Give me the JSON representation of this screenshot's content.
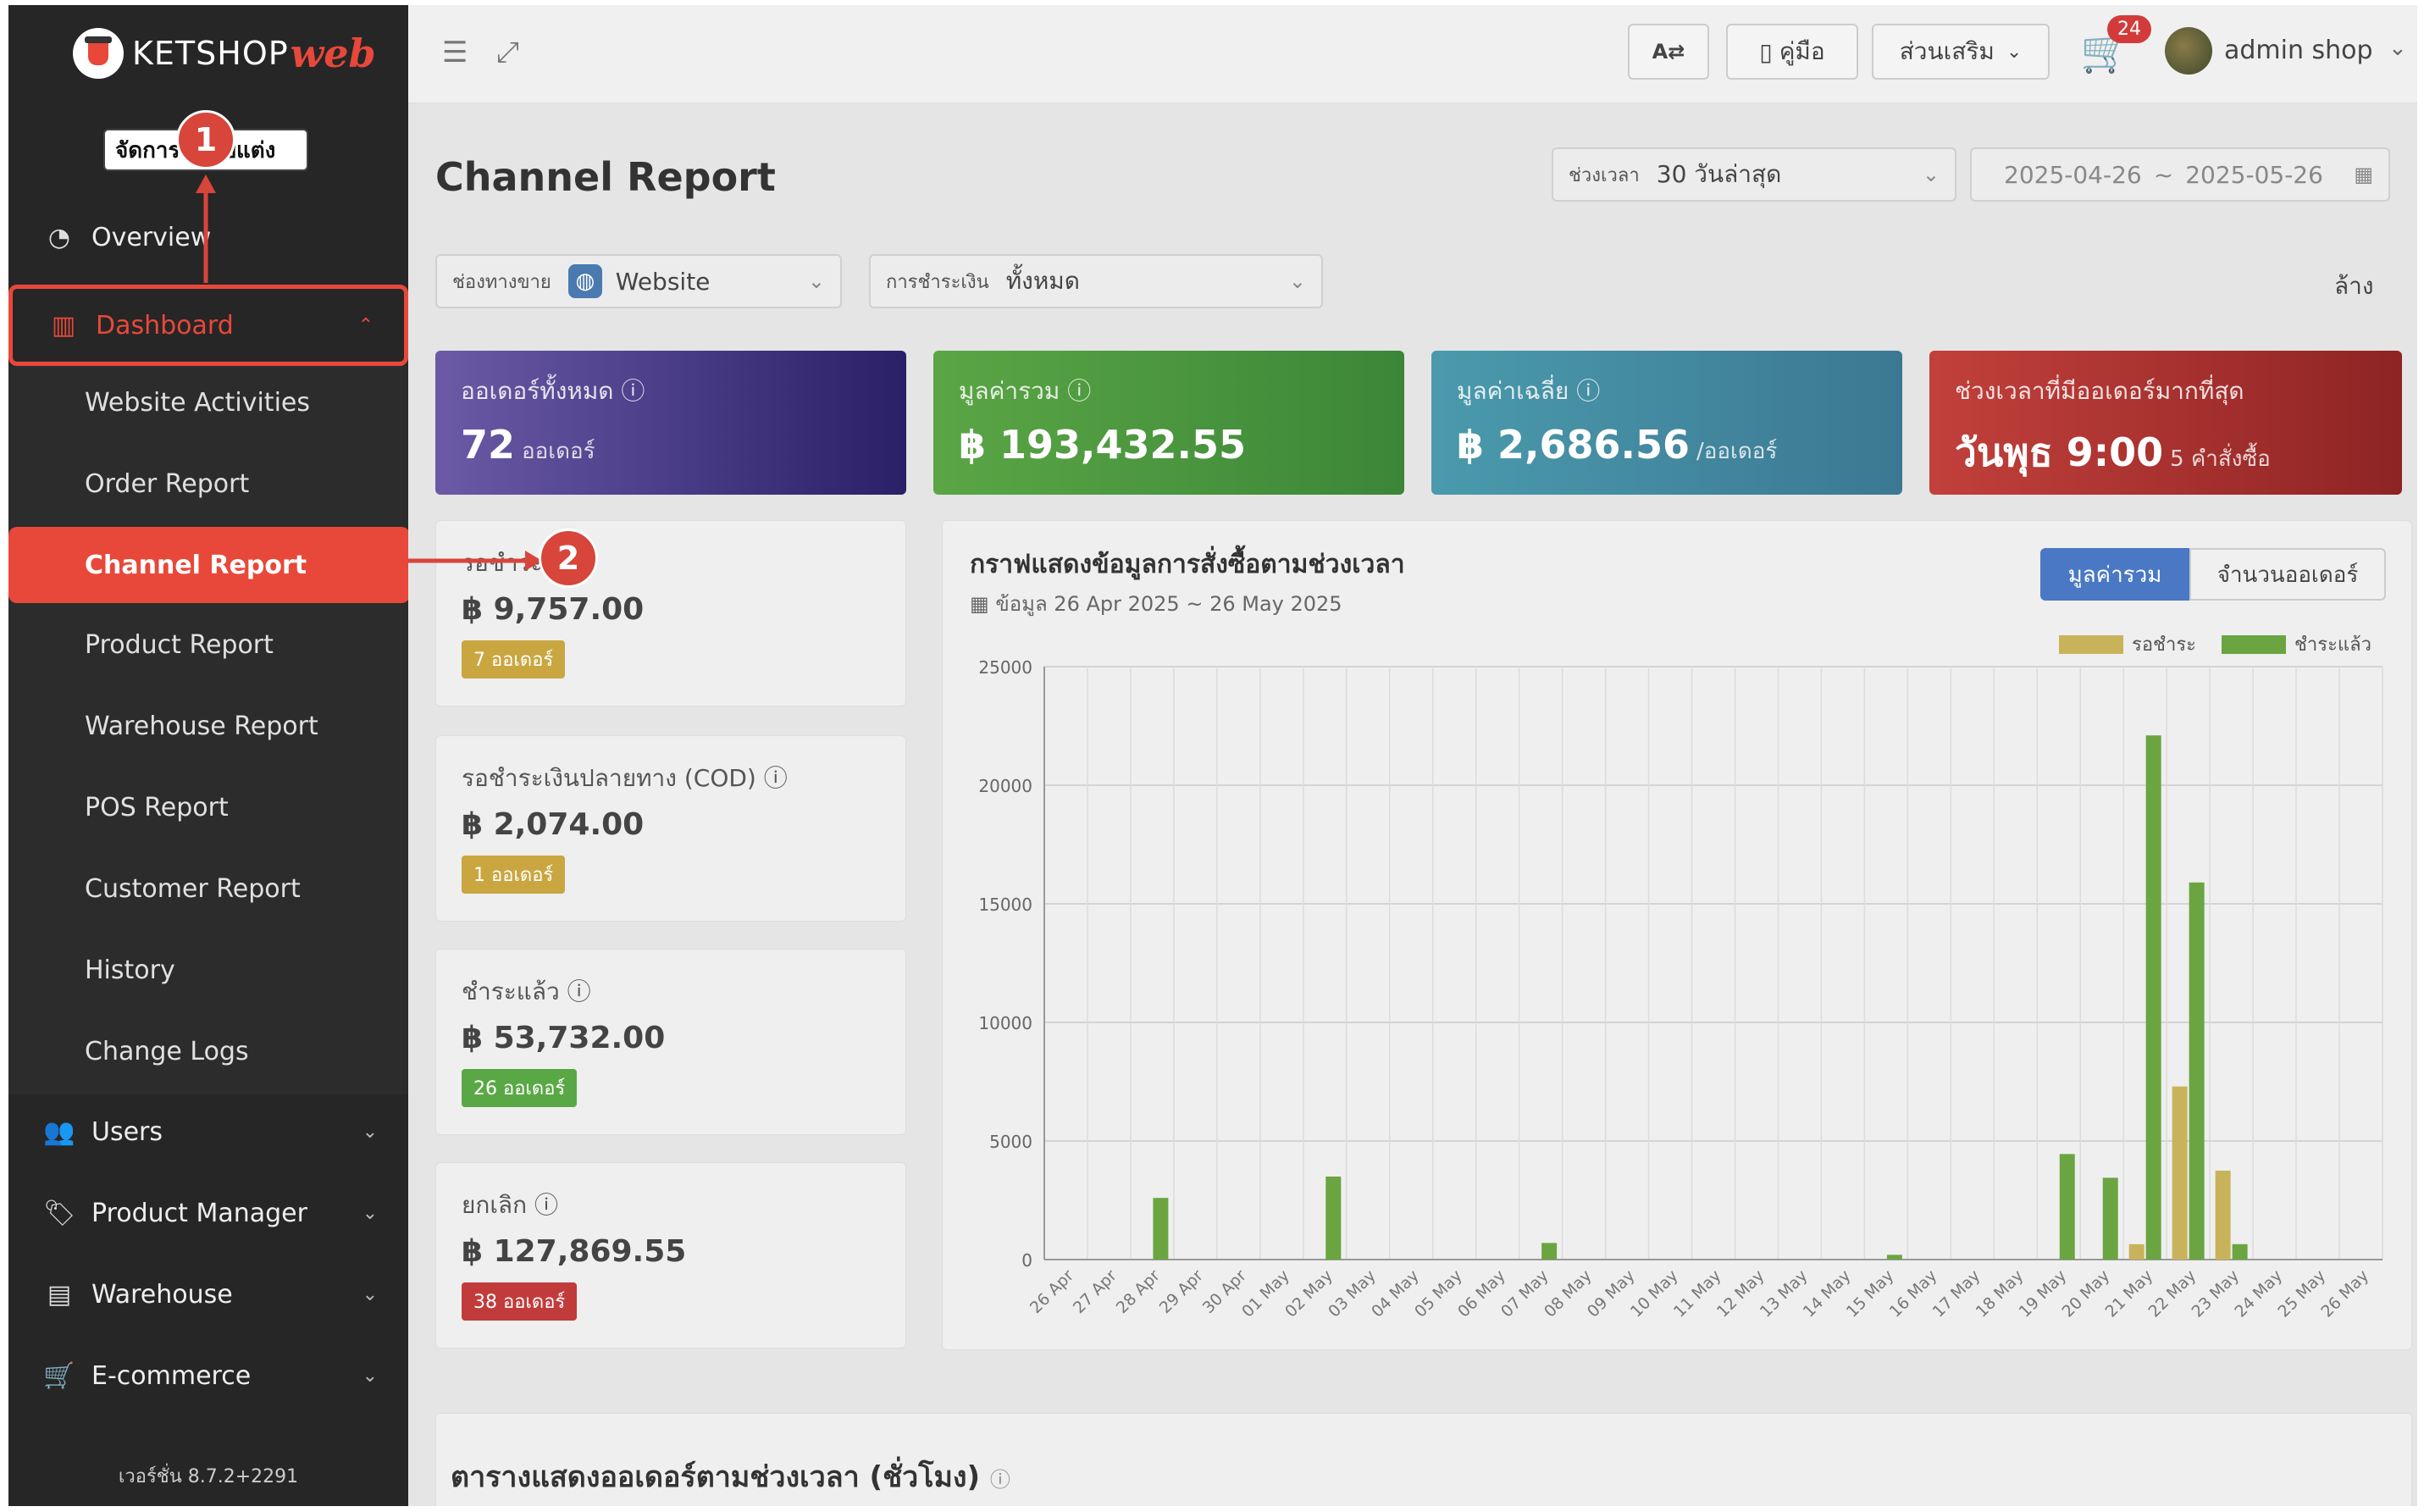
{
  "sidebar": {
    "logo_text": "KETSHOP",
    "logo_accent": "web",
    "manage_label": "จัดการ",
    "manage_suffix": "บแต่ง",
    "overview": "Overview",
    "dashboard": "Dashboard",
    "sub_items": [
      "Website Activities",
      "Order Report",
      "Channel Report",
      "Product Report",
      "Warehouse Report",
      "POS Report",
      "Customer Report",
      "History",
      "Change Logs"
    ],
    "users": "Users",
    "product_manager": "Product Manager",
    "warehouse": "Warehouse",
    "ecommerce": "E-commerce",
    "version": "เวอร์ชั่น 8.7.2+2291"
  },
  "topbar": {
    "manual": "คู่มือ",
    "addons": "ส่วนเสริม",
    "cart_count": "24",
    "user": "admin shop"
  },
  "page": {
    "title": "Channel Report",
    "period_label": "ช่วงเวลา",
    "period_value": "30 วันล่าสุด",
    "date_from": "2025-04-26",
    "date_sep": "~",
    "date_to": "2025-05-26",
    "channel_label": "ช่องทางขาย",
    "channel_value": "Website",
    "payment_label": "การชำระเงิน",
    "payment_value": "ทั้งหมด",
    "clear": "ล้าง"
  },
  "summary": [
    {
      "title": "ออเดอร์ทั้งหมด",
      "value": "72",
      "unit": "ออเดอร์"
    },
    {
      "title": "มูลค่ารวม",
      "value": "฿ 193,432.55",
      "unit": ""
    },
    {
      "title": "มูลค่าเฉลี่ย",
      "value": "฿ 2,686.56",
      "unit": "/ออเดอร์"
    },
    {
      "title": "ช่วงเวลาที่มีออเดอร์มากที่สุด",
      "value": "วันพุธ 9:00",
      "unit": "5 คำสั่งซื้อ"
    }
  ],
  "status_cards": [
    {
      "title": "รอชำระ",
      "value": "฿ 9,757.00",
      "badge": "7 ออเดอร์",
      "color": "#c9a640"
    },
    {
      "title": "รอชำระเงินปลายทาง (COD)",
      "value": "฿ 2,074.00",
      "badge": "1 ออเดอร์",
      "color": "#c9a640"
    },
    {
      "title": "ชำระแล้ว",
      "value": "฿ 53,732.00",
      "badge": "26 ออเดอร์",
      "color": "#5aa845"
    },
    {
      "title": "ยกเลิก",
      "value": "฿ 127,869.55",
      "badge": "38 ออเดอร์",
      "color": "#c23b3b"
    }
  ],
  "chart": {
    "title": "กราฟแสดงข้อมูลการสั่งซื้อตามช่วงเวลา",
    "subtitle": "ข้อมูล 26 Apr 2025 ~ 26 May 2025",
    "toggle_total": "มูลค่ารวม",
    "toggle_count": "จำนวนออเดอร์"
  },
  "chart_data": {
    "type": "bar",
    "categories": [
      "26 Apr",
      "27 Apr",
      "28 Apr",
      "29 Apr",
      "30 Apr",
      "01 May",
      "02 May",
      "03 May",
      "04 May",
      "05 May",
      "06 May",
      "07 May",
      "08 May",
      "09 May",
      "10 May",
      "11 May",
      "12 May",
      "13 May",
      "14 May",
      "15 May",
      "16 May",
      "17 May",
      "18 May",
      "19 May",
      "20 May",
      "21 May",
      "22 May",
      "23 May",
      "24 May",
      "25 May",
      "26 May"
    ],
    "series": [
      {
        "name": "รอชำระ",
        "color": "#c9b35a",
        "values": [
          0,
          0,
          0,
          0,
          0,
          0,
          0,
          0,
          0,
          0,
          0,
          0,
          0,
          0,
          0,
          0,
          0,
          0,
          0,
          0,
          0,
          0,
          0,
          0,
          0,
          650,
          7300,
          3750,
          0,
          0,
          0
        ]
      },
      {
        "name": "ชำระแล้ว",
        "color": "#6aa542",
        "values": [
          0,
          0,
          2600,
          0,
          0,
          0,
          3500,
          0,
          0,
          0,
          0,
          700,
          0,
          0,
          0,
          0,
          0,
          0,
          0,
          200,
          0,
          0,
          0,
          4450,
          3450,
          22100,
          15900,
          650,
          0,
          0,
          0
        ]
      }
    ],
    "ylim": [
      0,
      25000
    ],
    "yticks": [
      0,
      5000,
      10000,
      15000,
      20000,
      25000
    ],
    "grid": true,
    "legend": "top-right"
  },
  "bottom": {
    "title": "ตารางแสดงออเดอร์ตามช่วงเวลา (ชั่วโมง)"
  },
  "annotations": {
    "m1": "1",
    "m2": "2"
  }
}
